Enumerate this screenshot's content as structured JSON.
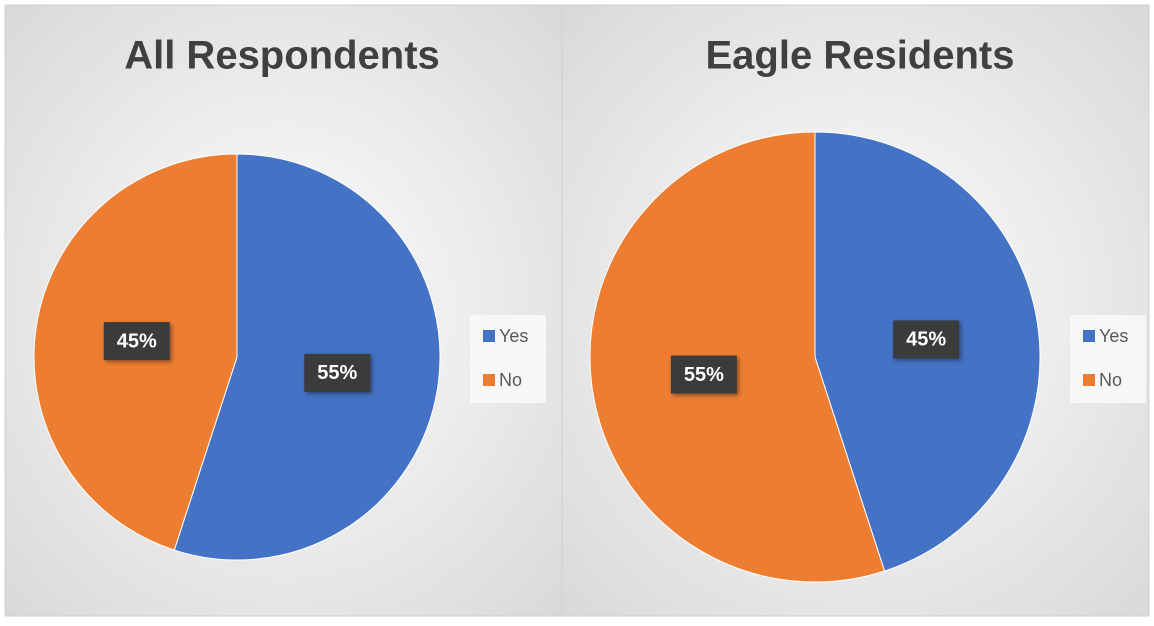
{
  "chart_data": [
    {
      "type": "pie",
      "title": "All Respondents",
      "categories": [
        "Yes",
        "No"
      ],
      "values": [
        55,
        45
      ],
      "value_labels": [
        "55%",
        "45%"
      ],
      "colors": [
        "#4472c4",
        "#ed7d31"
      ]
    },
    {
      "type": "pie",
      "title": "Eagle Residents",
      "categories": [
        "Yes",
        "No"
      ],
      "values": [
        45,
        55
      ],
      "value_labels": [
        "45%",
        "55%"
      ],
      "colors": [
        "#4472c4",
        "#ed7d31"
      ]
    }
  ]
}
